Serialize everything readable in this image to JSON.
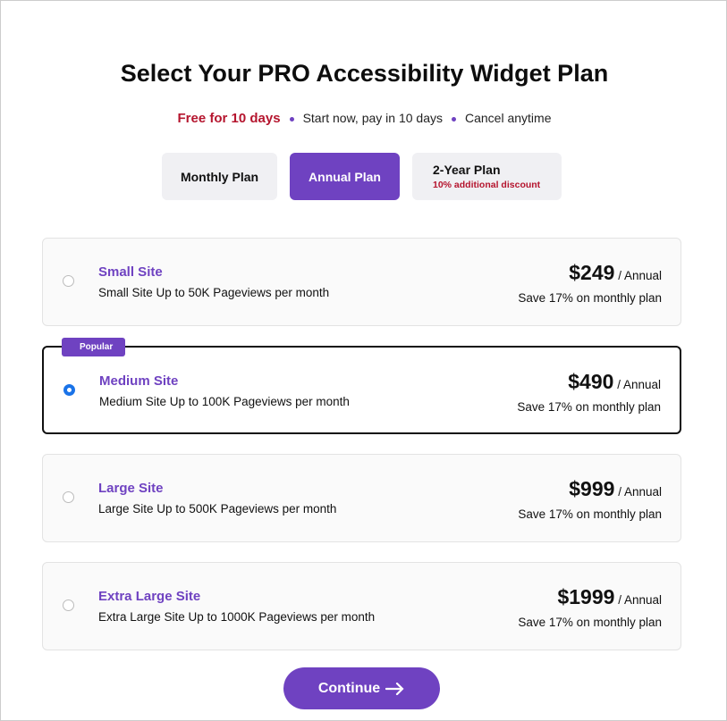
{
  "title": "Select Your PRO Accessibility Widget Plan",
  "subtitle": {
    "free": "Free for 10 days",
    "point2": "Start now, pay in 10 days",
    "point3": "Cancel anytime"
  },
  "tabs": [
    {
      "label": "Monthly Plan"
    },
    {
      "label": "Annual Plan",
      "active": true
    },
    {
      "label": "2-Year Plan",
      "note": "10% additional discount"
    }
  ],
  "plans": [
    {
      "name": "Small Site",
      "desc": "Small Site Up to 50K Pageviews per month",
      "price": "$249",
      "period": "/ Annual",
      "save": "Save 17% on monthly plan",
      "selected": false
    },
    {
      "name": "Medium Site",
      "desc": "Medium Site Up to 100K Pageviews per month",
      "price": "$490",
      "period": "/ Annual",
      "save": "Save 17% on monthly plan",
      "selected": true,
      "badge": "Popular"
    },
    {
      "name": "Large Site",
      "desc": "Large Site Up to 500K Pageviews per month",
      "price": "$999",
      "period": "/ Annual",
      "save": "Save 17% on monthly plan",
      "selected": false
    },
    {
      "name": "Extra Large Site",
      "desc": "Extra Large Site Up to 1000K Pageviews per month",
      "price": "$1999",
      "period": "/ Annual",
      "save": "Save 17% on monthly plan",
      "selected": false
    }
  ],
  "continue": {
    "label": "Continue",
    "icon": "arrow-right-icon"
  },
  "colors": {
    "accent": "#6f42c1",
    "red": "#b5152e",
    "radio": "#1a73e8"
  }
}
